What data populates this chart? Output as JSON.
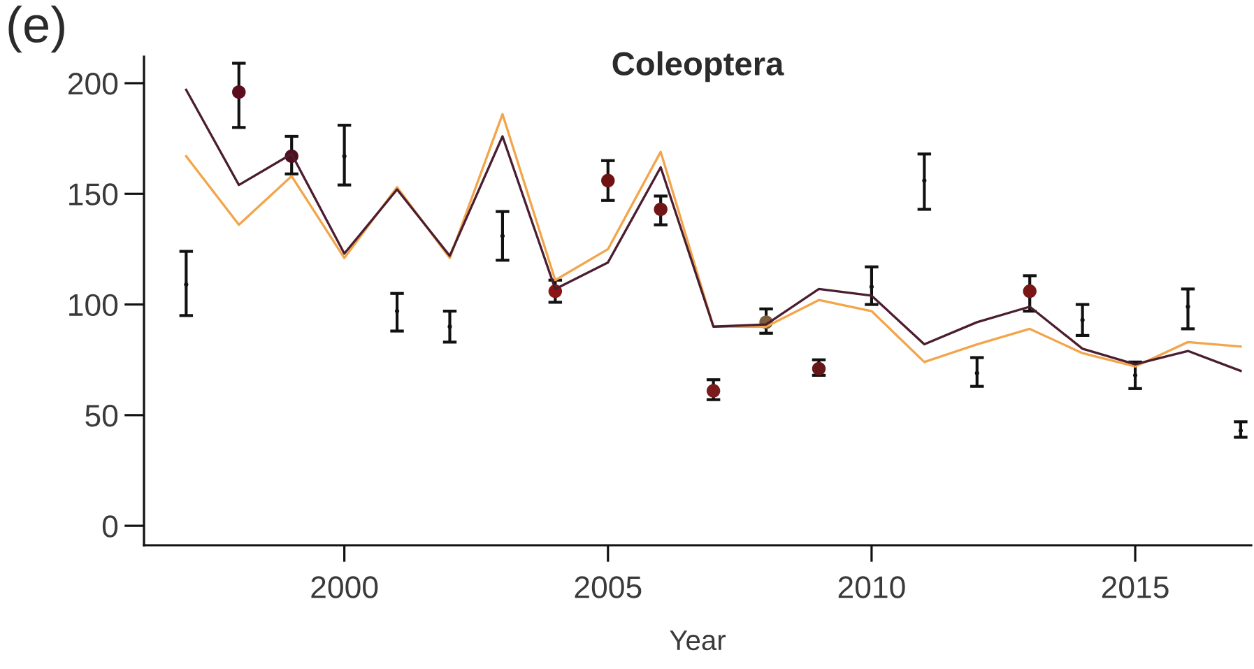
{
  "chart_data": {
    "type": "line",
    "title": "Coleoptera",
    "xlabel": "Year",
    "annotations": [
      "(e)"
    ],
    "xlim": [
      1996.2,
      2017.2
    ],
    "xticks": [
      2000,
      2005,
      2010,
      2015
    ],
    "ylim": [
      -8.8,
      212
    ],
    "yticks": [
      0,
      50,
      100,
      150,
      200
    ],
    "grid": false,
    "series": [
      {
        "color": "#f2a54a",
        "line_style": "solid",
        "x": [
          1997,
          1998,
          1999,
          2000,
          2001,
          2002,
          2003,
          2004,
          2005,
          2006,
          2007,
          2008,
          2009,
          2010,
          2011,
          2012,
          2013,
          2014,
          2015,
          2016,
          2017
        ],
        "values": [
          167,
          136,
          158,
          121,
          153,
          121,
          186,
          111,
          125,
          169,
          90,
          90,
          102,
          97,
          74,
          82,
          89,
          78,
          72,
          83,
          81
        ]
      },
      {
        "color": "#4b1d30",
        "line_style": "solid",
        "x": [
          1997,
          1998,
          1999,
          2000,
          2001,
          2002,
          2003,
          2004,
          2005,
          2006,
          2007,
          2008,
          2009,
          2010,
          2011,
          2012,
          2013,
          2014,
          2015,
          2016,
          2017
        ],
        "values": [
          197,
          154,
          168,
          123,
          152,
          122,
          176,
          107,
          119,
          162,
          90,
          91,
          107,
          104,
          82,
          92,
          99,
          80,
          73,
          79,
          70
        ]
      },
      {
        "type": "scatter",
        "color": "#111111",
        "marker": "circle",
        "x": [
          1997,
          2000,
          2001,
          2002,
          2003,
          2010,
          2011,
          2012,
          2014,
          2015,
          2016,
          2017
        ],
        "values": [
          109,
          167,
          97,
          90,
          131,
          108,
          156,
          69,
          93,
          68,
          99,
          43
        ],
        "errors": [
          [
            95,
            124
          ],
          [
            154,
            181
          ],
          [
            88,
            105
          ],
          [
            83,
            97
          ],
          [
            120,
            142
          ],
          [
            100,
            117
          ],
          [
            143,
            168
          ],
          [
            63,
            76
          ],
          [
            86,
            100
          ],
          [
            62,
            74
          ],
          [
            89,
            107
          ],
          [
            40,
            47
          ]
        ]
      },
      {
        "type": "scatter",
        "colors": [
          "#5a0e1e",
          "#4e0f1e",
          "#8c1414",
          "#6e1212",
          "#701616",
          "#7a1c1c",
          "#7d5e3e",
          "#661818",
          "#7a1616"
        ],
        "marker": "circle",
        "x": [
          1998,
          1999,
          2004,
          2005,
          2006,
          2007,
          2008,
          2009,
          2013
        ],
        "values": [
          196,
          167,
          106,
          156,
          143,
          61,
          92,
          71,
          106
        ],
        "errors": [
          [
            180,
            209
          ],
          [
            159,
            176
          ],
          [
            101,
            111
          ],
          [
            147,
            165
          ],
          [
            136,
            149
          ],
          [
            57,
            66
          ],
          [
            87,
            98
          ],
          [
            68,
            75
          ],
          [
            97,
            113
          ]
        ]
      }
    ]
  }
}
